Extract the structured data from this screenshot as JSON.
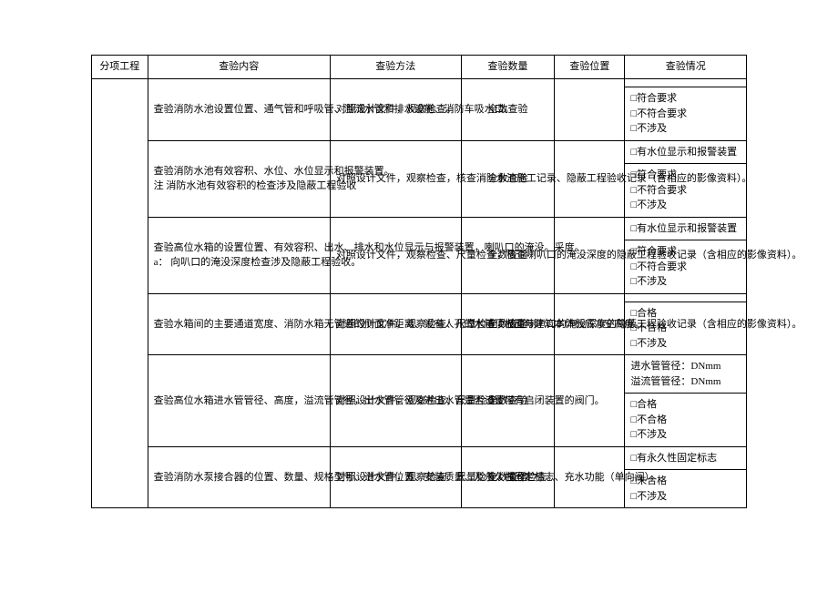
{
  "headers": {
    "sub_project": "分项工程",
    "inspection_content": "查验内容",
    "inspection_method": "查验方法",
    "inspection_qty": "查验数量",
    "inspection_loc": "查验位置",
    "inspection_status": "查验情况"
  },
  "rows": [
    {
      "content": "查验消防水池设置位置、通气管和呼吸管、溢流水管和排水设施、消防车吸水口。",
      "method": "对照设计文件，观察检查。",
      "qty": "全数查验",
      "status_top": "",
      "status_bottom": "□符合要求\n□不符合要求\n□不涉及"
    },
    {
      "content": "查验消防水池有效容积、水位、水位显示和报警装置。\n注 消防水池有效容积的检查涉及隐蔽工程验收",
      "method": "对照设计文件，观察检查，核查消防水池施工记录、隐蔽工程验收记录（含相应的影像资料）。",
      "qty": "全数查验",
      "status_top": "□有水位显示和报警装置",
      "status_bottom": "□符合要求\n□不符合要求\n□不涉及"
    },
    {
      "content": "查验高位水箱的设置位置、有效容积、出水、排水和水位显示与报警装置，喇叭口的淹没。采度。\na： 向叭口的淹没深度检查涉及隐蔽工程验收。",
      "method": "对照设计文件，观察检查、尺量检查，核查喇叭口的淹没深度的隐蔽工程验收记录（含相应的影像资料）。",
      "qty": "全数查验",
      "status_top": "□有水位显示和报警装置",
      "status_bottom": "□符合要求\n□不符合要求\n□不涉及"
    },
    {
      "content": "查验水箱间的主要通道宽度、消防水箱无管道的侧面净距离、设有人孔的水箱顶板面与建筑本体板底净空高度。",
      "method": "对照设计文件，观察检查、尺量检查，核查喇叭口的淹没深度的隐蔽工程验收记录（含相应的影像资料）。",
      "qty": "全数查验",
      "status_top": "",
      "status_bottom": "□合格\n□不合格\n□不涉及"
    },
    {
      "content": "查验高位水箱进水管管径、高度，溢流管管径，出水管管径及进出水管是否设置带有启闭装置的阀门。",
      "method": "对照设计文件，观察检查、尺量检查。",
      "qty": "全数查验",
      "status_top": "进水管管径：DNmm\n溢流管管径：DNmm",
      "status_bottom": "□合格\n□不合格\n□不涉及"
    },
    {
      "content": "查验消防水泵接合器的位置、数量、规格型号、进水管位置、安装质量、及永久性固定标志、充水功能（单向阀），",
      "method": "对照设计文件，观察检查、尺量检查、操作检查。",
      "qty": "全数查验",
      "status_top": "□有永久性固定标志",
      "status_bottom": "□未合格\n□不涉及"
    }
  ]
}
